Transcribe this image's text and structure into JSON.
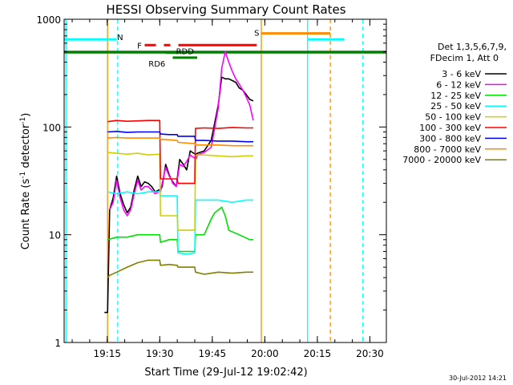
{
  "chart_data": {
    "type": "line",
    "title": "HESSI Observing Summary Count Rates",
    "xlabel": "Start Time (29-Jul-12 19:02:42)",
    "ylabel_main": "Count Rate (s",
    "ylabel_sup1": "-1",
    "ylabel_mid": " detector",
    "ylabel_sup2": "-1",
    "ylabel_end": ")",
    "y_scale": "log",
    "ylim": [
      1,
      1000
    ],
    "xlim_minutes": [
      0,
      92
    ],
    "x_ticks": [
      {
        "label": "19:15",
        "min": 12.3
      },
      {
        "label": "19:30",
        "min": 27.3
      },
      {
        "label": "19:45",
        "min": 42.3
      },
      {
        "label": "20:00",
        "min": 57.3
      },
      {
        "label": "20:15",
        "min": 72.3
      },
      {
        "label": "20:30",
        "min": 87.3
      }
    ],
    "y_ticks": [
      {
        "label": "1",
        "value": 1
      },
      {
        "label": "10",
        "value": 10
      },
      {
        "label": "100",
        "value": 100
      },
      {
        "label": "1000",
        "value": 1000
      }
    ],
    "legend_header": [
      "Det 1,3,5,6,7,9,",
      "FDecim 1, Att 0"
    ],
    "legend_position": "right",
    "series": [
      {
        "name": "3 - 6 keV",
        "color": "#000000",
        "points": [
          [
            11.5,
            1.9
          ],
          [
            12,
            1.9
          ],
          [
            12.4,
            1.9
          ],
          [
            13,
            17
          ],
          [
            14,
            22
          ],
          [
            15,
            35
          ],
          [
            16,
            24
          ],
          [
            17,
            19
          ],
          [
            18,
            16
          ],
          [
            19,
            18
          ],
          [
            20,
            26
          ],
          [
            21,
            35
          ],
          [
            22,
            28
          ],
          [
            23,
            31
          ],
          [
            24,
            30
          ],
          [
            25,
            28
          ],
          [
            26,
            25
          ],
          [
            27,
            26
          ],
          [
            27.5,
            26
          ],
          [
            28,
            28
          ],
          [
            29,
            45
          ],
          [
            30,
            36
          ],
          [
            30.5,
            33
          ],
          [
            31,
            31
          ],
          [
            32,
            28
          ],
          [
            33,
            50
          ],
          [
            34,
            45
          ],
          [
            35,
            40
          ],
          [
            36,
            60
          ],
          [
            37,
            57
          ],
          [
            37.8,
            56
          ],
          [
            38,
            57
          ],
          [
            40,
            60
          ],
          [
            42,
            75
          ],
          [
            44,
            160
          ],
          [
            45,
            290
          ],
          [
            46,
            280
          ],
          [
            47,
            280
          ],
          [
            48,
            270
          ],
          [
            49,
            260
          ],
          [
            50,
            230
          ],
          [
            51,
            220
          ],
          [
            52,
            200
          ],
          [
            53,
            180
          ],
          [
            54,
            175
          ]
        ]
      },
      {
        "name": "6 - 12 keV",
        "color": "#ff00ff",
        "points": [
          [
            13,
            17
          ],
          [
            14,
            20
          ],
          [
            15,
            32
          ],
          [
            16,
            22
          ],
          [
            17,
            17
          ],
          [
            18,
            15
          ],
          [
            19,
            17
          ],
          [
            20,
            24
          ],
          [
            21,
            32
          ],
          [
            22,
            26
          ],
          [
            23,
            28
          ],
          [
            24,
            28
          ],
          [
            25,
            26
          ],
          [
            26,
            24
          ],
          [
            27,
            25
          ],
          [
            27.5,
            25
          ],
          [
            28,
            30
          ],
          [
            29,
            42
          ],
          [
            30,
            35
          ],
          [
            30.5,
            33
          ],
          [
            31,
            30
          ],
          [
            32,
            28
          ],
          [
            33,
            45
          ],
          [
            34,
            43
          ],
          [
            35,
            48
          ],
          [
            36,
            55
          ],
          [
            37,
            52
          ],
          [
            37.8,
            51
          ],
          [
            38,
            55
          ],
          [
            40,
            58
          ],
          [
            42,
            65
          ],
          [
            44,
            150
          ],
          [
            45,
            350
          ],
          [
            46,
            500
          ],
          [
            47,
            400
          ],
          [
            48,
            330
          ],
          [
            49,
            280
          ],
          [
            50,
            250
          ],
          [
            51,
            220
          ],
          [
            52,
            190
          ],
          [
            53,
            160
          ],
          [
            54,
            115
          ]
        ]
      },
      {
        "name": "12 - 25 keV",
        "color": "#00e000",
        "points": [
          [
            12.4,
            9
          ],
          [
            15,
            9.5
          ],
          [
            18,
            9.5
          ],
          [
            21,
            10
          ],
          [
            24,
            10
          ],
          [
            27.3,
            10
          ],
          [
            27.5,
            8.5
          ],
          [
            30,
            9
          ],
          [
            32.3,
            9
          ],
          [
            32.5,
            7
          ],
          [
            35,
            7
          ],
          [
            37.3,
            7
          ],
          [
            37.5,
            10
          ],
          [
            40,
            10
          ],
          [
            42,
            14
          ],
          [
            43,
            16
          ],
          [
            44,
            17
          ],
          [
            45,
            18
          ],
          [
            46,
            15
          ],
          [
            47,
            11
          ],
          [
            50,
            10
          ],
          [
            53,
            9
          ],
          [
            54,
            9
          ]
        ]
      },
      {
        "name": "25 - 50 keV",
        "color": "#00ffff",
        "points": [
          [
            12.4,
            25
          ],
          [
            15,
            24
          ],
          [
            18,
            25
          ],
          [
            21,
            24
          ],
          [
            24,
            25
          ],
          [
            27.3,
            25
          ],
          [
            27.5,
            23
          ],
          [
            30,
            23
          ],
          [
            32.3,
            23
          ],
          [
            32.5,
            6.8
          ],
          [
            35,
            6.6
          ],
          [
            37.3,
            6.8
          ],
          [
            37.5,
            21
          ],
          [
            40,
            21
          ],
          [
            44,
            21
          ],
          [
            48,
            20
          ],
          [
            52,
            21
          ],
          [
            54,
            21
          ]
        ]
      },
      {
        "name": "50 - 100 keV",
        "color": "#d0d000",
        "points": [
          [
            12.4,
            58
          ],
          [
            15,
            57
          ],
          [
            18,
            56
          ],
          [
            21,
            57
          ],
          [
            24,
            55
          ],
          [
            27.3,
            56
          ],
          [
            27.5,
            15
          ],
          [
            30,
            15
          ],
          [
            32.3,
            15
          ],
          [
            32.5,
            11
          ],
          [
            35,
            11
          ],
          [
            37.3,
            11
          ],
          [
            37.5,
            55
          ],
          [
            40,
            55
          ],
          [
            44,
            54
          ],
          [
            48,
            53
          ],
          [
            52,
            54
          ],
          [
            54,
            54
          ]
        ]
      },
      {
        "name": "100 - 300 keV",
        "color": "#ff0000",
        "points": [
          [
            12.4,
            112
          ],
          [
            15,
            115
          ],
          [
            18,
            113
          ],
          [
            21,
            114
          ],
          [
            24,
            115
          ],
          [
            27.3,
            115
          ],
          [
            27.5,
            33
          ],
          [
            30,
            33
          ],
          [
            32.3,
            33
          ],
          [
            32.5,
            30
          ],
          [
            35,
            30
          ],
          [
            37.3,
            30
          ],
          [
            37.5,
            97
          ],
          [
            40,
            98
          ],
          [
            44,
            97
          ],
          [
            48,
            99
          ],
          [
            52,
            98
          ],
          [
            54,
            98
          ]
        ]
      },
      {
        "name": "300 - 800 keV",
        "color": "#0000ff",
        "points": [
          [
            12.4,
            90
          ],
          [
            15,
            91
          ],
          [
            18,
            89
          ],
          [
            21,
            90
          ],
          [
            24,
            90
          ],
          [
            27.3,
            90
          ],
          [
            27.5,
            86
          ],
          [
            30,
            85
          ],
          [
            32.3,
            85
          ],
          [
            32.5,
            82
          ],
          [
            35,
            82
          ],
          [
            37.3,
            82
          ],
          [
            37.5,
            75
          ],
          [
            40,
            75
          ],
          [
            44,
            74
          ],
          [
            48,
            74
          ],
          [
            52,
            73
          ],
          [
            54,
            73
          ]
        ]
      },
      {
        "name": "800 - 7000 keV",
        "color": "#ff8c00",
        "points": [
          [
            12.4,
            79
          ],
          [
            15,
            80
          ],
          [
            18,
            79
          ],
          [
            21,
            79
          ],
          [
            24,
            79
          ],
          [
            27.3,
            79
          ],
          [
            27.5,
            77
          ],
          [
            30,
            76
          ],
          [
            32.3,
            75
          ],
          [
            32.5,
            72
          ],
          [
            35,
            71
          ],
          [
            37.3,
            70
          ],
          [
            37.5,
            68
          ],
          [
            40,
            68
          ],
          [
            44,
            68
          ],
          [
            48,
            67
          ],
          [
            52,
            67
          ],
          [
            54,
            67
          ]
        ]
      },
      {
        "name": "7000 - 20000 keV",
        "color": "#808000",
        "points": [
          [
            12.4,
            4
          ],
          [
            13,
            4.2
          ],
          [
            15,
            4.5
          ],
          [
            18,
            5
          ],
          [
            21,
            5.5
          ],
          [
            24,
            5.8
          ],
          [
            27.3,
            5.8
          ],
          [
            27.5,
            5.2
          ],
          [
            30,
            5.3
          ],
          [
            32.3,
            5.2
          ],
          [
            32.5,
            5
          ],
          [
            35,
            5
          ],
          [
            37.3,
            5
          ],
          [
            37.5,
            4.5
          ],
          [
            40,
            4.3
          ],
          [
            44,
            4.5
          ],
          [
            48,
            4.4
          ],
          [
            52,
            4.5
          ],
          [
            54,
            4.5
          ]
        ]
      }
    ],
    "state_bars": [
      {
        "label": "N",
        "color": "#00ffff",
        "value": 650,
        "x_from": 0,
        "x_to": 15,
        "label_at": 16,
        "label_offset": -3
      },
      {
        "label": "",
        "color": "#00ffff",
        "value": 650,
        "x_from": 69.5,
        "x_to": 80,
        "label_at": 0,
        "label_offset": 0
      },
      {
        "label": "S",
        "color": "#ff8c00",
        "value": 740,
        "x_from": 56.3,
        "x_to": 76,
        "label_at": 55,
        "label_offset": -1
      },
      {
        "label": "F",
        "color": "#ff0000",
        "value": 575,
        "x_from": 23,
        "x_to": 55,
        "label_at": 21.5,
        "label_offset": 0
      },
      {
        "label": "RDD",
        "color": "#008000",
        "value": 490,
        "x_from": 29,
        "x_to": 33,
        "label_at": 34.5,
        "label_offset": -2
      },
      {
        "label": "RD6",
        "color": "#008000",
        "value": 440,
        "x_from": 31,
        "x_to": 38,
        "label_at": 26.5,
        "label_offset": 7
      }
    ],
    "night_line": {
      "color": "#008000",
      "value": 495
    },
    "vlines": [
      {
        "min": 0.5,
        "color": "#00ffff",
        "dash": false
      },
      {
        "min": 15.3,
        "color": "#00ffff",
        "dash": true
      },
      {
        "min": 12.4,
        "color": "#ff8c00",
        "dash": false
      },
      {
        "min": 56.3,
        "color": "#ff8c00",
        "dash": false
      },
      {
        "min": 69.5,
        "color": "#00ffff",
        "dash": false
      },
      {
        "min": 76,
        "color": "#ff8c00",
        "dash": true
      },
      {
        "min": 85.3,
        "color": "#00ffff",
        "dash": true
      }
    ]
  },
  "footer": {
    "timestamp": "30-Jul-2012 14:21"
  }
}
